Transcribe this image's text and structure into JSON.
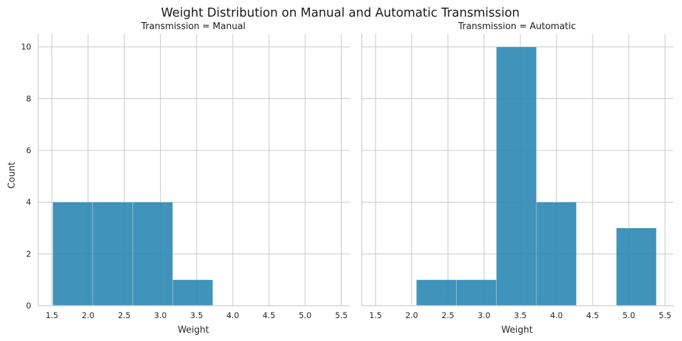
{
  "chart_data": {
    "type": "bar",
    "title": "Weight Distribution on Manual and Automatic Transmission",
    "ylabel": "Count",
    "xlim": [
      1.31,
      5.62
    ],
    "ylim": [
      0,
      10.5
    ],
    "xticks": [
      "1.5",
      "2.0",
      "2.5",
      "3.0",
      "3.5",
      "4.0",
      "4.5",
      "5.0",
      "5.5"
    ],
    "yticks": [
      "0",
      "2",
      "4",
      "6",
      "8",
      "10"
    ],
    "bar_color": "#2b87b2",
    "grid": true,
    "panels": [
      {
        "title": "Transmission = Manual",
        "xlabel": "Weight",
        "bins": [
          {
            "x0": 1.513,
            "x1": 2.065,
            "count": 4
          },
          {
            "x0": 2.065,
            "x1": 2.618,
            "count": 4
          },
          {
            "x0": 2.618,
            "x1": 3.17,
            "count": 4
          },
          {
            "x0": 3.17,
            "x1": 3.723,
            "count": 1
          }
        ]
      },
      {
        "title": "Transmission = Automatic",
        "xlabel": "Weight",
        "bins": [
          {
            "x0": 2.065,
            "x1": 2.618,
            "count": 1
          },
          {
            "x0": 2.618,
            "x1": 3.17,
            "count": 1
          },
          {
            "x0": 3.17,
            "x1": 3.723,
            "count": 10
          },
          {
            "x0": 3.723,
            "x1": 4.275,
            "count": 4
          },
          {
            "x0": 4.828,
            "x1": 5.38,
            "count": 3
          }
        ]
      }
    ]
  }
}
